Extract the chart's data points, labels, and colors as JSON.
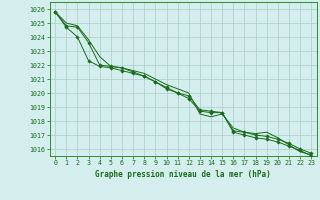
{
  "title": "Graphe pression niveau de la mer (hPa)",
  "background_color": "#d4eeee",
  "grid_color": "#aacccc",
  "line_color": "#1a6b1a",
  "spine_color": "#2d8b2d",
  "xlim": [
    -0.5,
    23.5
  ],
  "ylim": [
    1015.5,
    1026.5
  ],
  "yticks": [
    1016,
    1017,
    1018,
    1019,
    1020,
    1021,
    1022,
    1023,
    1024,
    1025,
    1026
  ],
  "xticks": [
    0,
    1,
    2,
    3,
    4,
    5,
    6,
    7,
    8,
    9,
    10,
    11,
    12,
    13,
    14,
    15,
    16,
    17,
    18,
    19,
    20,
    21,
    22,
    23
  ],
  "series": [
    [
      1025.8,
      1025.0,
      1024.8,
      1023.8,
      1022.6,
      1021.9,
      1021.8,
      1021.6,
      1021.4,
      1021.0,
      1020.6,
      1020.3,
      1020.0,
      1018.5,
      1018.3,
      1018.5,
      1017.5,
      1017.2,
      1017.1,
      1017.2,
      1016.8,
      1016.3,
      1015.8,
      1015.6
    ],
    [
      1025.8,
      1024.8,
      1024.7,
      1023.6,
      1022.0,
      1021.9,
      1021.8,
      1021.5,
      1021.2,
      1020.8,
      1020.3,
      1020.0,
      1019.6,
      1018.7,
      1018.6,
      1018.6,
      1017.2,
      1017.0,
      1016.8,
      1016.7,
      1016.5,
      1016.2,
      1015.9,
      1015.5
    ],
    [
      1025.8,
      1024.7,
      1024.0,
      1022.3,
      1021.9,
      1021.8,
      1021.6,
      1021.4,
      1021.2,
      1020.8,
      1020.4,
      1020.0,
      1019.8,
      1018.8,
      1018.7,
      1018.6,
      1017.3,
      1017.2,
      1017.0,
      1016.9,
      1016.7,
      1016.4,
      1016.0,
      1015.7
    ]
  ],
  "title_fontsize": 5.5,
  "tick_fontsize": 4.8,
  "linewidth": 0.7,
  "marker_style": "D",
  "marker_size": 1.8
}
